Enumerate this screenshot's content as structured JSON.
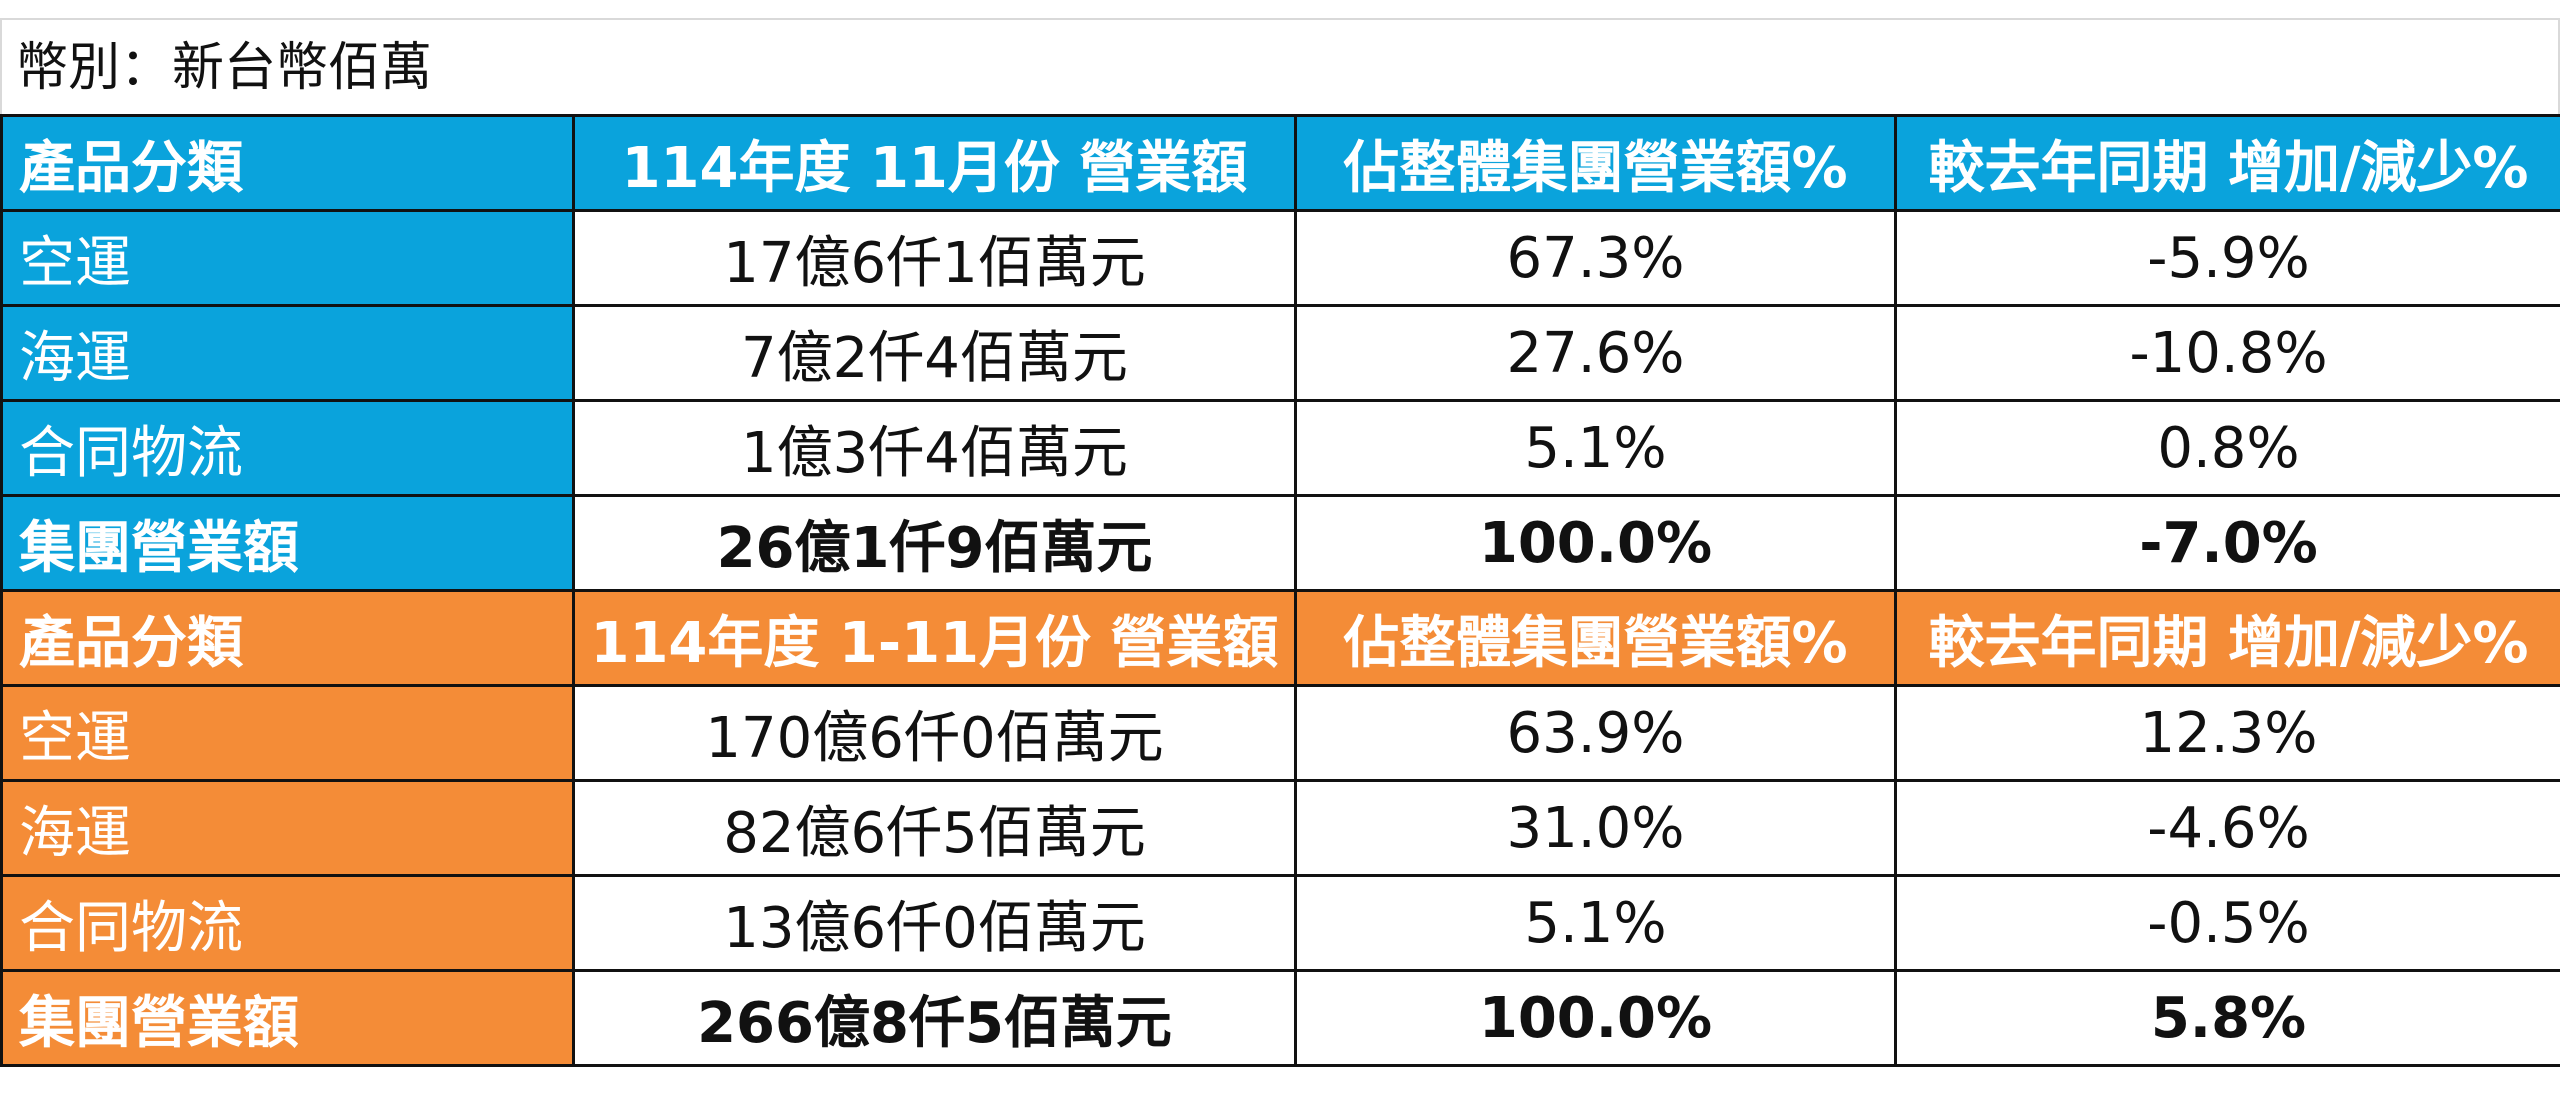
{
  "currency_note": "幣別：新台幣佰萬",
  "sections": [
    {
      "headers": [
        "產品分類",
        "114年度 11月份 營業額",
        "佔整體集團營業額%",
        "較去年同期 增加/減少%"
      ],
      "rows": [
        [
          "空運",
          "17億6仟1佰萬元",
          "67.3%",
          "-5.9%"
        ],
        [
          "海運",
          "7億2仟4佰萬元",
          "27.6%",
          "-10.8%"
        ],
        [
          "合同物流",
          "1億3仟4佰萬元",
          "5.1%",
          "0.8%"
        ],
        [
          "集團營業額",
          "26億1仟9佰萬元",
          "100.0%",
          "-7.0%"
        ]
      ]
    },
    {
      "headers": [
        "產品分類",
        "114年度 1-11月份 營業額",
        "佔整體集團營業額%",
        "較去年同期 增加/減少%"
      ],
      "rows": [
        [
          "空運",
          "170億6仟0佰萬元",
          "63.9%",
          "12.3%"
        ],
        [
          "海運",
          "82億6仟5佰萬元",
          "31.0%",
          "-4.6%"
        ],
        [
          "合同物流",
          "13億6仟0佰萬元",
          "5.1%",
          "-0.5%"
        ],
        [
          "集團營業額",
          "266億8仟5佰萬元",
          "100.0%",
          "5.8%"
        ]
      ]
    }
  ],
  "colors": {
    "section1_header": "#0aa3dc",
    "section2_header": "#f48c37"
  }
}
